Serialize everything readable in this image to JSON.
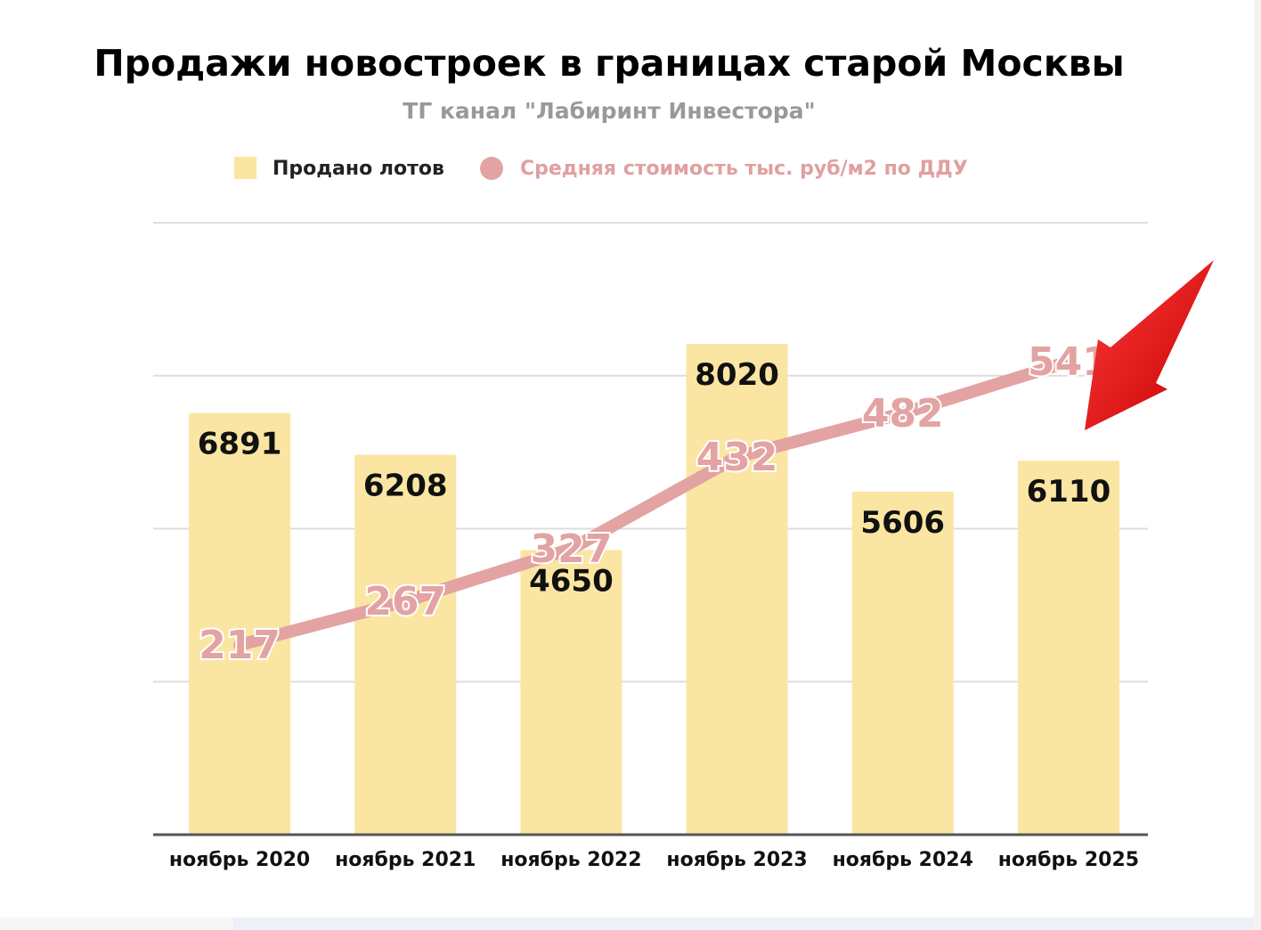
{
  "chart_data": {
    "type": "bar",
    "title": "Продажи новостроек в границах старой Москвы",
    "subtitle": "ТГ канал \"Лабиринт Инвестора\"",
    "categories": [
      "ноябрь 2020",
      "ноябрь 2021",
      "ноябрь 2022",
      "ноябрь 2023",
      "ноябрь 2024",
      "ноябрь 2025"
    ],
    "series": [
      {
        "name": "Продано лотов",
        "type": "bar",
        "color": "#fae6a2",
        "values": [
          6891,
          6208,
          4650,
          8020,
          5606,
          6110
        ]
      },
      {
        "name": "Средняя стоимость тыс. руб/м2 по ДДУ",
        "type": "line",
        "color": "#e3a3a3",
        "values": [
          217,
          267,
          327,
          432,
          482,
          541
        ]
      }
    ],
    "bar_axis_range": [
      0,
      10000
    ],
    "line_axis_range": [
      0,
      700
    ],
    "grid": true,
    "axis_tick_labels_visible": false,
    "legend_placement": "top-center",
    "annotation": "red-arrow pointing to ноябрь 2025 bar"
  }
}
